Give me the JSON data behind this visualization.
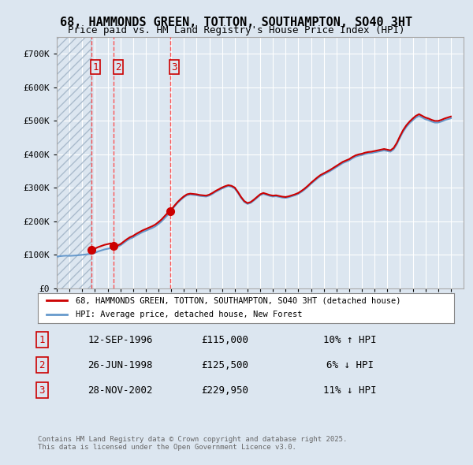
{
  "title": "68, HAMMONDS GREEN, TOTTON, SOUTHAMPTON, SO40 3HT",
  "subtitle": "Price paid vs. HM Land Registry's House Price Index (HPI)",
  "bg_color": "#dce6f0",
  "plot_bg_color": "#dce6f0",
  "hatch_color": "#b0c0d8",
  "red_line_color": "#cc0000",
  "blue_line_color": "#6699cc",
  "sale_marker_color": "#cc0000",
  "vline_color": "#ff4444",
  "legend_border_color": "#888888",
  "table_border_color": "#cc0000",
  "footnote_color": "#666666",
  "ylim": [
    0,
    750000
  ],
  "yticks": [
    0,
    100000,
    200000,
    300000,
    400000,
    500000,
    600000,
    700000
  ],
  "ytick_labels": [
    "£0",
    "£100K",
    "£200K",
    "£300K",
    "£400K",
    "£500K",
    "£600K",
    "£700K"
  ],
  "xstart": 1994.0,
  "xend": 2026.0,
  "hatch_xend": 1996.67,
  "sales": [
    {
      "date": 1996.71,
      "price": 115000,
      "label": "1"
    },
    {
      "date": 1998.49,
      "price": 125500,
      "label": "2"
    },
    {
      "date": 2002.91,
      "price": 229950,
      "label": "3"
    }
  ],
  "table_rows": [
    {
      "num": "1",
      "date": "12-SEP-1996",
      "price": "£115,000",
      "hpi": "10% ↑ HPI"
    },
    {
      "num": "2",
      "date": "26-JUN-1998",
      "price": "£125,500",
      "hpi": "6% ↓ HPI"
    },
    {
      "num": "3",
      "date": "28-NOV-2002",
      "price": "£229,950",
      "hpi": "11% ↓ HPI"
    }
  ],
  "legend_items": [
    {
      "label": "68, HAMMONDS GREEN, TOTTON, SOUTHAMPTON, SO40 3HT (detached house)",
      "color": "#cc0000"
    },
    {
      "label": "HPI: Average price, detached house, New Forest",
      "color": "#6699cc"
    }
  ],
  "footnote": "Contains HM Land Registry data © Crown copyright and database right 2025.\nThis data is licensed under the Open Government Licence v3.0.",
  "hpi_data": {
    "years": [
      1994.0,
      1994.25,
      1994.5,
      1994.75,
      1995.0,
      1995.25,
      1995.5,
      1995.75,
      1996.0,
      1996.25,
      1996.5,
      1996.75,
      1997.0,
      1997.25,
      1997.5,
      1997.75,
      1998.0,
      1998.25,
      1998.5,
      1998.75,
      1999.0,
      1999.25,
      1999.5,
      1999.75,
      2000.0,
      2000.25,
      2000.5,
      2000.75,
      2001.0,
      2001.25,
      2001.5,
      2001.75,
      2002.0,
      2002.25,
      2002.5,
      2002.75,
      2003.0,
      2003.25,
      2003.5,
      2003.75,
      2004.0,
      2004.25,
      2004.5,
      2004.75,
      2005.0,
      2005.25,
      2005.5,
      2005.75,
      2006.0,
      2006.25,
      2006.5,
      2006.75,
      2007.0,
      2007.25,
      2007.5,
      2007.75,
      2008.0,
      2008.25,
      2008.5,
      2008.75,
      2009.0,
      2009.25,
      2009.5,
      2009.75,
      2010.0,
      2010.25,
      2010.5,
      2010.75,
      2011.0,
      2011.25,
      2011.5,
      2011.75,
      2012.0,
      2012.25,
      2012.5,
      2012.75,
      2013.0,
      2013.25,
      2013.5,
      2013.75,
      2014.0,
      2014.25,
      2014.5,
      2014.75,
      2015.0,
      2015.25,
      2015.5,
      2015.75,
      2016.0,
      2016.25,
      2016.5,
      2016.75,
      2017.0,
      2017.25,
      2017.5,
      2017.75,
      2018.0,
      2018.25,
      2018.5,
      2018.75,
      2019.0,
      2019.25,
      2019.5,
      2019.75,
      2020.0,
      2020.25,
      2020.5,
      2020.75,
      2021.0,
      2021.25,
      2021.5,
      2021.75,
      2022.0,
      2022.25,
      2022.5,
      2022.75,
      2023.0,
      2023.25,
      2023.5,
      2023.75,
      2024.0,
      2024.25,
      2024.5,
      2024.75,
      2025.0
    ],
    "values": [
      95000,
      96000,
      97000,
      97500,
      97000,
      97500,
      98000,
      99000,
      100000,
      101000,
      102000,
      103000,
      106000,
      110000,
      113000,
      116000,
      118000,
      120000,
      122000,
      124000,
      128000,
      135000,
      142000,
      148000,
      152000,
      158000,
      163000,
      168000,
      172000,
      176000,
      180000,
      185000,
      192000,
      200000,
      210000,
      220000,
      232000,
      244000,
      255000,
      264000,
      272000,
      278000,
      280000,
      279000,
      278000,
      276000,
      275000,
      274000,
      277000,
      282000,
      288000,
      293000,
      298000,
      302000,
      305000,
      303000,
      298000,
      285000,
      270000,
      258000,
      252000,
      255000,
      262000,
      270000,
      278000,
      282000,
      279000,
      276000,
      274000,
      275000,
      273000,
      271000,
      270000,
      272000,
      275000,
      278000,
      282000,
      288000,
      295000,
      303000,
      312000,
      320000,
      328000,
      335000,
      340000,
      345000,
      350000,
      356000,
      362000,
      368000,
      374000,
      378000,
      382000,
      388000,
      393000,
      396000,
      398000,
      401000,
      403000,
      404000,
      406000,
      408000,
      410000,
      412000,
      410000,
      408000,
      415000,
      430000,
      450000,
      468000,
      482000,
      493000,
      502000,
      510000,
      515000,
      510000,
      505000,
      502000,
      498000,
      495000,
      495000,
      498000,
      502000,
      505000,
      508000
    ]
  },
  "price_data": {
    "years": [
      1994.0,
      1996.71,
      1998.49,
      2002.91,
      2025.0
    ],
    "values": [
      95000,
      115000,
      125500,
      229950,
      480000
    ]
  }
}
